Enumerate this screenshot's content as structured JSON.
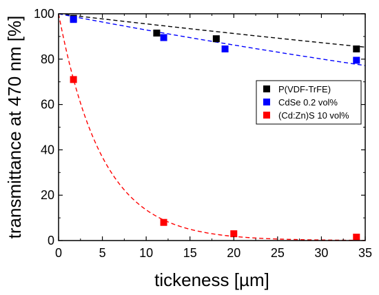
{
  "chart_data": {
    "type": "scatter",
    "xlabel": "tickeness [µm]",
    "ylabel": "transmittance at 470 nm [%]",
    "xlim": [
      0,
      35
    ],
    "ylim": [
      0,
      100
    ],
    "x_ticks": [
      0,
      5,
      10,
      15,
      20,
      25,
      30,
      35
    ],
    "y_ticks": [
      0,
      20,
      40,
      60,
      80,
      100
    ],
    "grid": false,
    "legend_position": "right",
    "series": [
      {
        "name": "P(VDF-TrFE)",
        "color": "#000000",
        "points": [
          {
            "x": 1.7,
            "y": 98.0
          },
          {
            "x": 11.2,
            "y": 91.5
          },
          {
            "x": 18.0,
            "y": 89.0
          },
          {
            "x": 34.0,
            "y": 84.5
          }
        ],
        "fit": {
          "type": "exponential",
          "tau": 220,
          "color": "#000000"
        }
      },
      {
        "name": "CdSe 0.2 vol%",
        "color": "#0000ff",
        "points": [
          {
            "x": 1.7,
            "y": 97.5
          },
          {
            "x": 12.0,
            "y": 89.5
          },
          {
            "x": 19.0,
            "y": 84.5
          },
          {
            "x": 34.0,
            "y": 79.5
          }
        ],
        "fit": {
          "type": "exponential",
          "tau": 135,
          "color": "#0000ff"
        }
      },
      {
        "name": "(Cd:Zn)S 10 vol%",
        "color": "#ff0000",
        "points": [
          {
            "x": 1.7,
            "y": 71.0
          },
          {
            "x": 12.0,
            "y": 8.0
          },
          {
            "x": 20.0,
            "y": 3.0
          },
          {
            "x": 34.0,
            "y": 1.5
          }
        ],
        "fit": {
          "type": "exponential",
          "tau": 5.0,
          "color": "#ff0000"
        }
      }
    ]
  }
}
